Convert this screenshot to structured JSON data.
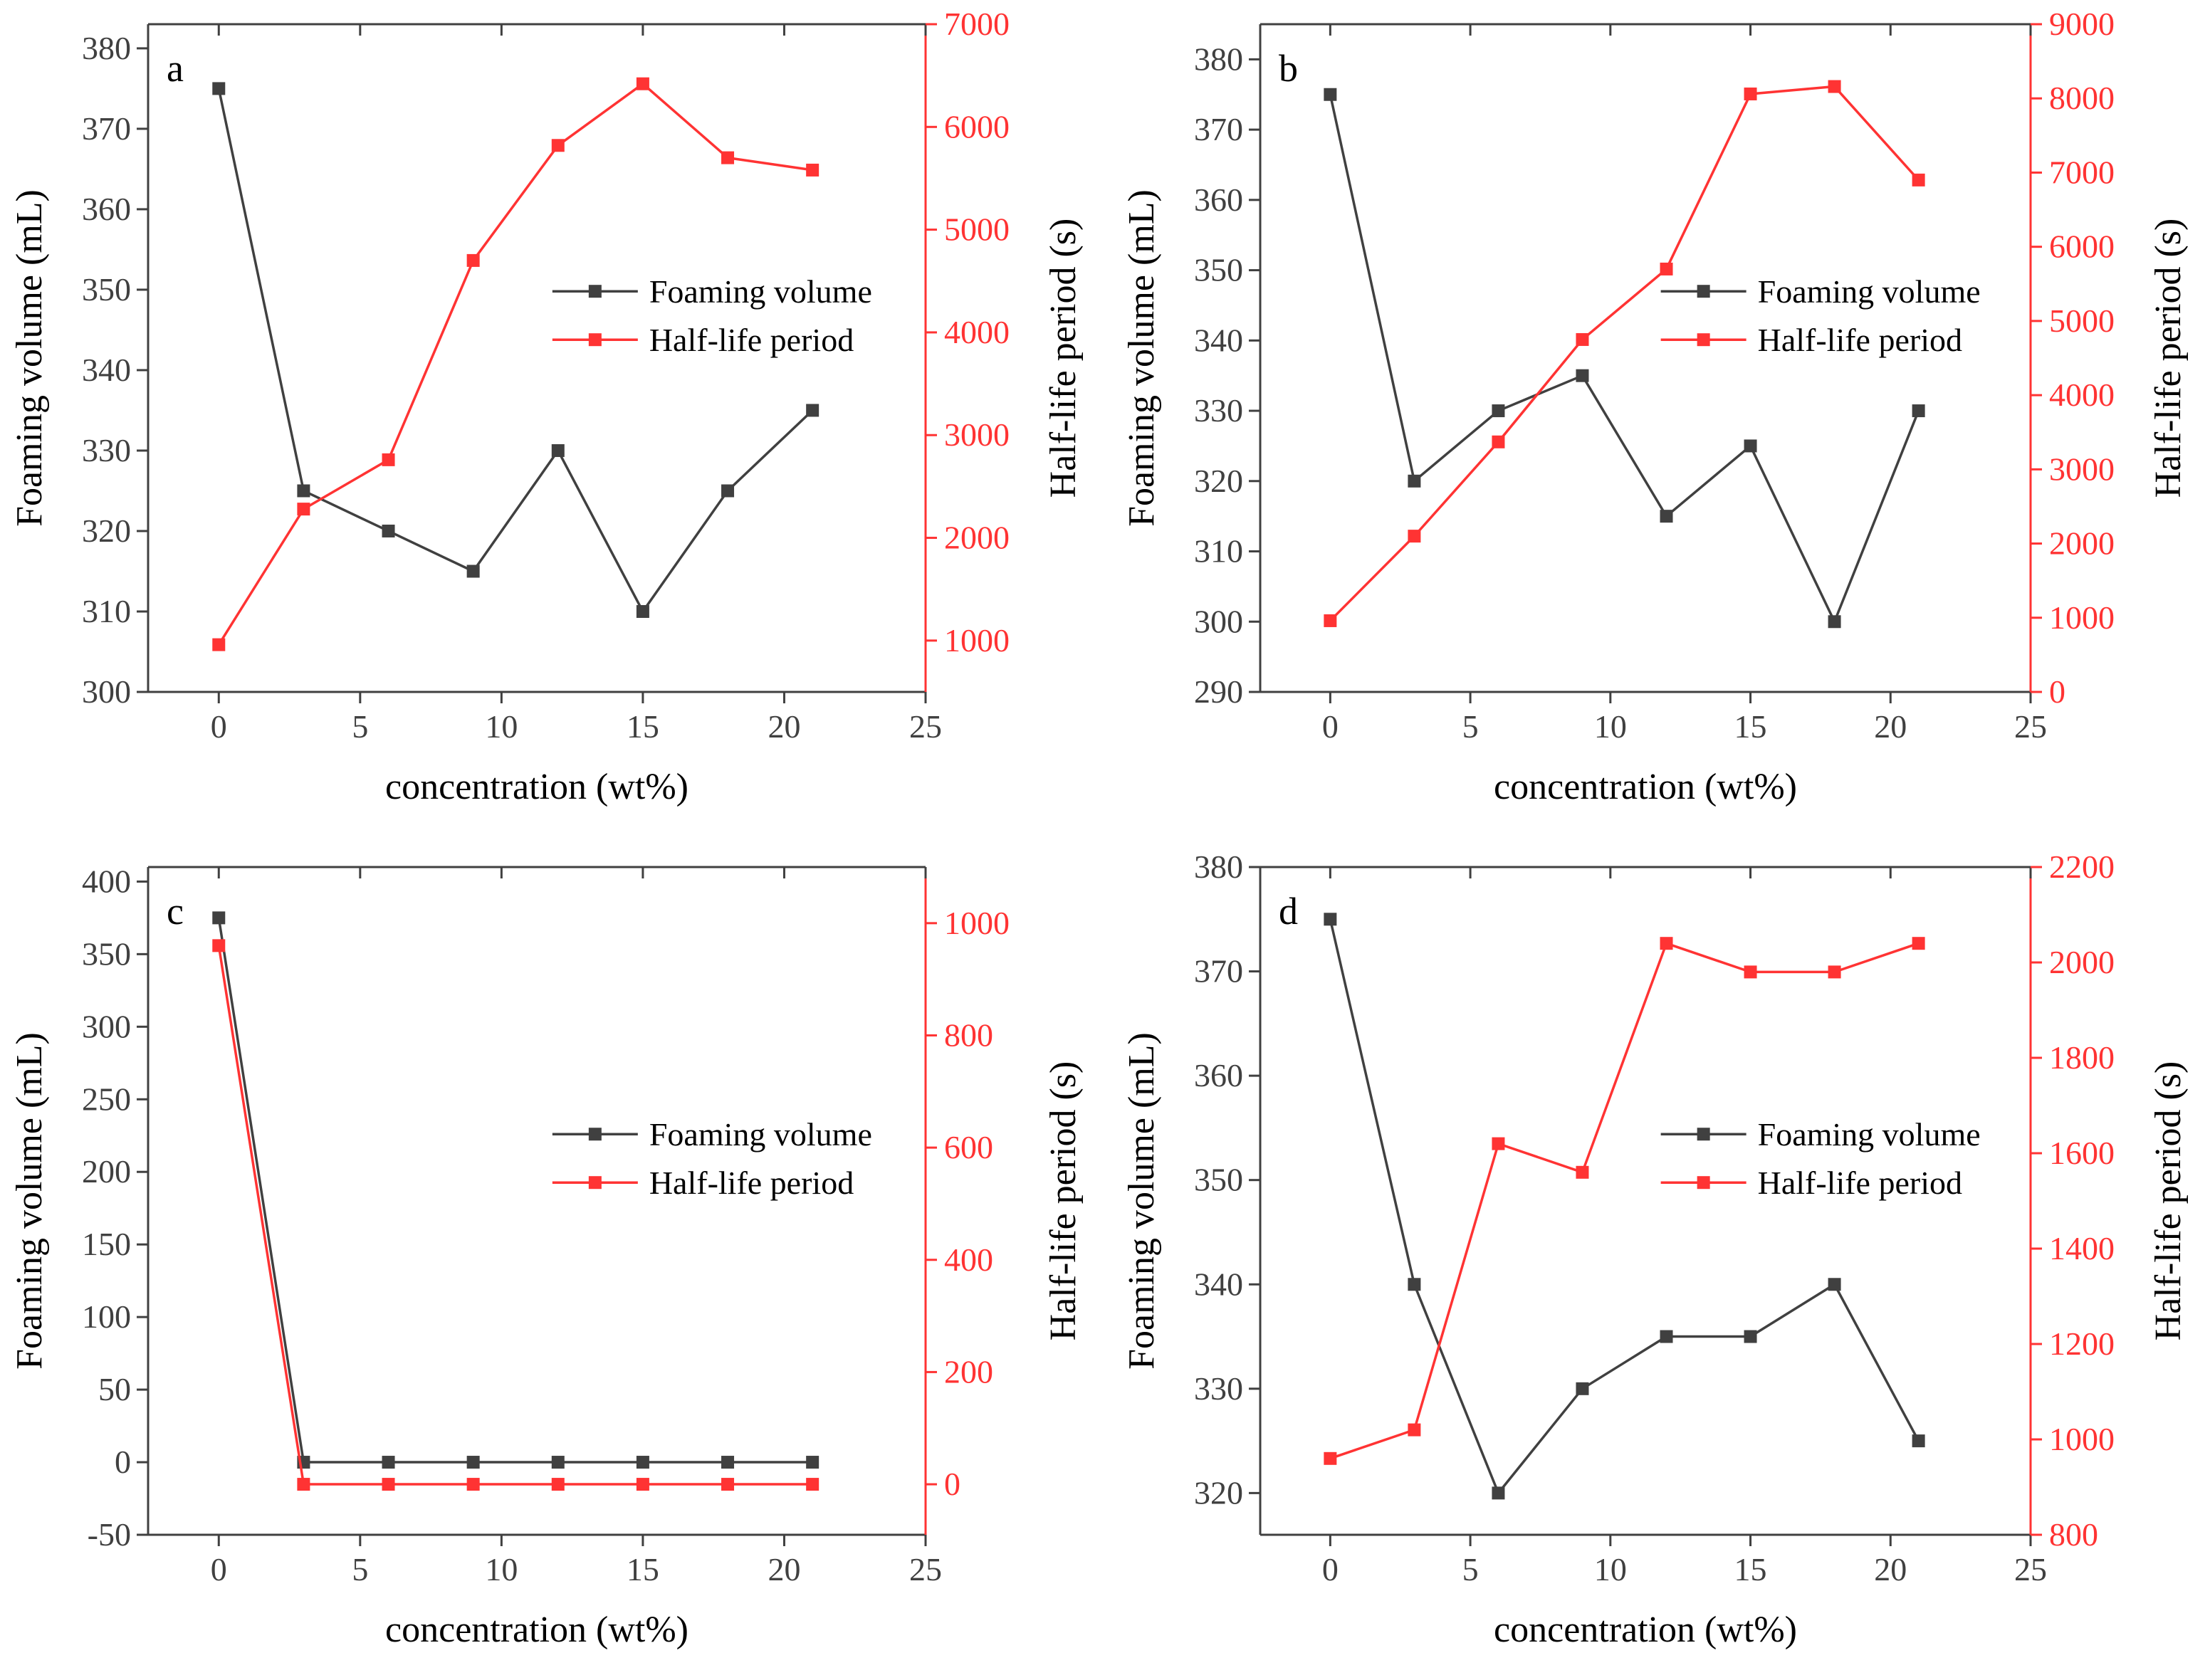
{
  "colors": {
    "left": "#404040",
    "right": "#ff3333"
  },
  "chart_data": [
    {
      "type": "line",
      "panel": "a",
      "xlabel": "concentration (wt%)",
      "ylabel": "Foaming volume (mL)",
      "y2label": "Half-life period (s)",
      "xlim": [
        -2.5,
        25
      ],
      "xticks": [
        0,
        5,
        10,
        15,
        20,
        25
      ],
      "ylim": [
        300,
        383
      ],
      "yticks": [
        300,
        310,
        320,
        330,
        340,
        350,
        360,
        370,
        380
      ],
      "y2lim": [
        500,
        7000
      ],
      "y2ticks": [
        1000,
        2000,
        3000,
        4000,
        5000,
        6000,
        7000
      ],
      "legend_position": "center-right",
      "x": [
        0,
        3,
        6,
        9,
        12,
        15,
        18,
        21
      ],
      "series": [
        {
          "name": "Foaming volume",
          "axis": "left",
          "values": [
            375,
            325,
            320,
            315,
            330,
            310,
            325,
            335
          ]
        },
        {
          "name": "Half-life period",
          "axis": "right",
          "values": [
            960,
            2280,
            2760,
            4700,
            5820,
            6420,
            5700,
            5580
          ]
        }
      ]
    },
    {
      "type": "line",
      "panel": "b",
      "xlabel": "concentration (wt%)",
      "ylabel": "Foaming volume (mL)",
      "y2label": "Half-life period (s)",
      "xlim": [
        -2.5,
        25
      ],
      "xticks": [
        0,
        5,
        10,
        15,
        20,
        25
      ],
      "ylim": [
        290,
        385
      ],
      "yticks": [
        290,
        300,
        310,
        320,
        330,
        340,
        350,
        360,
        370,
        380
      ],
      "y2lim": [
        0,
        9000
      ],
      "y2ticks": [
        0,
        1000,
        2000,
        3000,
        4000,
        5000,
        6000,
        7000,
        8000,
        9000
      ],
      "legend_position": "center-right",
      "x": [
        0,
        3,
        6,
        9,
        12,
        15,
        18,
        21
      ],
      "series": [
        {
          "name": "Foaming volume",
          "axis": "left",
          "values": [
            375,
            320,
            330,
            335,
            315,
            325,
            300,
            330
          ]
        },
        {
          "name": "Half-life period",
          "axis": "right",
          "values": [
            960,
            2100,
            3370,
            4750,
            5700,
            8060,
            8160,
            6900
          ]
        }
      ]
    },
    {
      "type": "line",
      "panel": "c",
      "xlabel": "concentration (wt%)",
      "ylabel": "Foaming volume (mL)",
      "y2label": "Half-life period (s)",
      "xlim": [
        -2.5,
        25
      ],
      "xticks": [
        0,
        5,
        10,
        15,
        20,
        25
      ],
      "ylim": [
        -50,
        410
      ],
      "yticks": [
        -50,
        0,
        50,
        100,
        150,
        200,
        250,
        300,
        350,
        400
      ],
      "y2lim": [
        -90,
        1100
      ],
      "y2ticks": [
        0,
        200,
        400,
        600,
        800,
        1000
      ],
      "legend_position": "center-right",
      "x": [
        0,
        3,
        6,
        9,
        12,
        15,
        18,
        21
      ],
      "series": [
        {
          "name": "Foaming volume",
          "axis": "left",
          "values": [
            375,
            0,
            0,
            0,
            0,
            0,
            0,
            0
          ]
        },
        {
          "name": "Half-life period",
          "axis": "right",
          "values": [
            960,
            0,
            0,
            0,
            0,
            0,
            0,
            0
          ]
        }
      ]
    },
    {
      "type": "line",
      "panel": "d",
      "xlabel": "concentration (wt%)",
      "ylabel": "Foaming volume (mL)",
      "y2label": "Half-life period (s)",
      "xlim": [
        -2.5,
        25
      ],
      "xticks": [
        0,
        5,
        10,
        15,
        20,
        25
      ],
      "ylim": [
        316,
        380
      ],
      "yticks": [
        320,
        330,
        340,
        350,
        360,
        370,
        380
      ],
      "y2lim": [
        800,
        2200
      ],
      "y2ticks": [
        800,
        1000,
        1200,
        1400,
        1600,
        1800,
        2000,
        2200
      ],
      "legend_position": "center-right",
      "x": [
        0,
        3,
        6,
        9,
        12,
        15,
        18,
        21
      ],
      "series": [
        {
          "name": "Foaming volume",
          "axis": "left",
          "values": [
            375,
            340,
            320,
            330,
            335,
            335,
            340,
            325
          ]
        },
        {
          "name": "Half-life period",
          "axis": "right",
          "values": [
            960,
            1020,
            1620,
            1560,
            2040,
            1980,
            1980,
            2040
          ]
        }
      ]
    }
  ]
}
